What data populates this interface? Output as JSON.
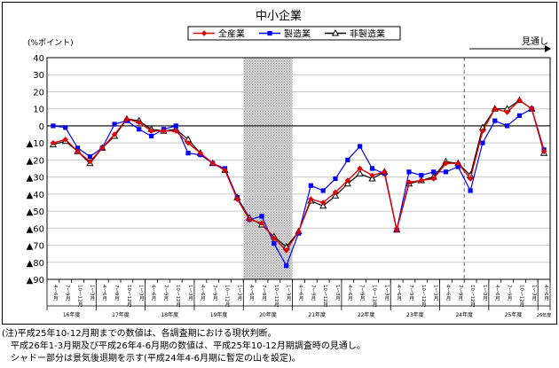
{
  "chart_data": {
    "type": "line",
    "title": "中小企業",
    "ylabel": "(%ポイント)",
    "forecast_label": "見通し",
    "ylim": [
      -90,
      40
    ],
    "y_ticks": [
      {
        "value": 40,
        "label": "40"
      },
      {
        "value": 30,
        "label": "30"
      },
      {
        "value": 20,
        "label": "20"
      },
      {
        "value": 10,
        "label": "10"
      },
      {
        "value": 0,
        "label": "0"
      },
      {
        "value": -10,
        "label": "▲10"
      },
      {
        "value": -20,
        "label": "▲20"
      },
      {
        "value": -30,
        "label": "▲30"
      },
      {
        "value": -40,
        "label": "▲40"
      },
      {
        "value": -50,
        "label": "▲50"
      },
      {
        "value": -60,
        "label": "▲60"
      },
      {
        "value": -70,
        "label": "▲70"
      },
      {
        "value": -80,
        "label": "▲80"
      },
      {
        "value": -90,
        "label": "▲90"
      }
    ],
    "quarter_labels": [
      "4〜6月",
      "7〜9月",
      "10〜12月",
      "1〜3月",
      "4〜6月",
      "7〜9月",
      "10〜12月",
      "1〜3月",
      "4〜6月",
      "7〜9月",
      "10〜12月",
      "1〜3月",
      "4〜6月",
      "7〜9月",
      "10〜12月",
      "1〜3月",
      "4〜6月",
      "7〜9月",
      "10〜12月",
      "1〜3月",
      "4〜6月",
      "7〜9月",
      "10〜12月",
      "1〜3月",
      "4〜6月",
      "7〜9月",
      "10〜12月",
      "1〜3月",
      "4〜6月",
      "7〜9月",
      "10〜12月",
      "1〜3月",
      "4〜6月",
      "7〜9月",
      "10〜12月",
      "1〜3月",
      "4〜6月",
      "7〜9月",
      "10〜12月",
      "1〜3月",
      "4〜6月"
    ],
    "year_labels": [
      {
        "label": "16年度",
        "start": 0,
        "span": 4
      },
      {
        "label": "17年度",
        "start": 4,
        "span": 4
      },
      {
        "label": "18年度",
        "start": 8,
        "span": 4
      },
      {
        "label": "19年度",
        "start": 12,
        "span": 4
      },
      {
        "label": "20年度",
        "start": 16,
        "span": 4
      },
      {
        "label": "21年度",
        "start": 20,
        "span": 4
      },
      {
        "label": "22年度",
        "start": 24,
        "span": 4
      },
      {
        "label": "23年度",
        "start": 28,
        "span": 4
      },
      {
        "label": "24年度",
        "start": 32,
        "span": 4
      },
      {
        "label": "25年度",
        "start": 36,
        "span": 4
      },
      {
        "label": "26年度",
        "start": 40,
        "span": 1
      }
    ],
    "shaded_recession": {
      "start": 16,
      "end": 20
    },
    "forecast_divider_at": 33.5,
    "series": [
      {
        "name": "全産業",
        "color": "#e00000",
        "marker": "diamond",
        "values": [
          -10,
          -8,
          -15,
          -21,
          -13,
          -5,
          4,
          2,
          -3,
          -3,
          -3,
          -10,
          -16,
          -22,
          -26,
          -43,
          -55,
          -57,
          -66,
          -73,
          -62,
          -43,
          -45,
          -39,
          -32,
          -25,
          -29,
          -27,
          -61,
          -33,
          -32,
          -31,
          -22,
          -22,
          -31,
          -3,
          10,
          8,
          15,
          10,
          -15
        ]
      },
      {
        "name": "製造業",
        "color": "#0000ff",
        "marker": "square",
        "values": [
          0,
          -1,
          -13,
          -18,
          -13,
          1,
          3,
          -2,
          -6,
          -2,
          0,
          -16,
          -17,
          -22,
          -25,
          -42,
          -55,
          -53,
          -69,
          -82,
          -63,
          -35,
          -38,
          -31,
          -20,
          -12,
          -25,
          -28,
          -61,
          -27,
          -29,
          -27,
          -27,
          -24,
          -38,
          -10,
          3,
          0,
          6,
          10,
          -14
        ]
      },
      {
        "name": "非製造業",
        "color": "#000000",
        "marker": "triangle",
        "values": [
          -11,
          -9,
          -15,
          -22,
          -13,
          -6,
          4,
          3,
          -2,
          -3,
          -2,
          -8,
          -16,
          -22,
          -26,
          -42,
          -54,
          -58,
          -65,
          -71,
          -62,
          -44,
          -47,
          -41,
          -34,
          -28,
          -31,
          -27,
          -61,
          -34,
          -32,
          -30,
          -21,
          -22,
          -29,
          -1,
          10,
          10,
          15,
          10,
          -16
        ]
      }
    ]
  },
  "notes": [
    "(注)平成25年10-12月期までの数値は、各調査期における現状判断。",
    "平成26年1-3月期及び平成26年4-6月期の数値は、平成25年10-12月期調査時の見通し。",
    "シャドー部分は景気後退期を示す(平成24年4-6月期に暫定の山を設定)。"
  ]
}
